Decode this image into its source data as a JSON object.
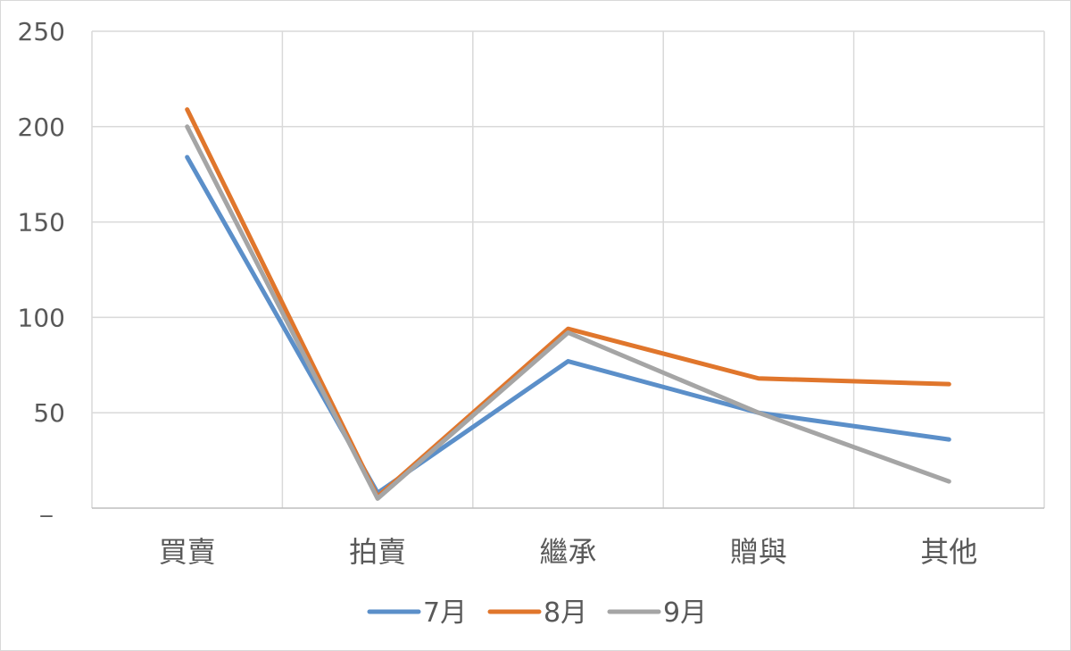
{
  "chart_data": {
    "type": "line",
    "title": "",
    "xlabel": "",
    "ylabel": "",
    "categories": [
      "買賣",
      "拍賣",
      "繼承",
      "贈與",
      "其他"
    ],
    "ylim": [
      0,
      250
    ],
    "yticks": [
      250,
      200,
      150,
      100,
      50
    ],
    "y_zero_tick": "_",
    "grid": true,
    "legend_position": "bottom",
    "series": [
      {
        "name": "7月",
        "color": "#5b8fc9",
        "values": [
          184,
          8,
          77,
          50,
          36
        ]
      },
      {
        "name": "8月",
        "color": "#e0762c",
        "values": [
          209,
          6,
          94,
          68,
          65
        ]
      },
      {
        "name": "9月",
        "color": "#a5a5a5",
        "values": [
          200,
          5,
          92,
          50,
          14
        ]
      }
    ]
  }
}
